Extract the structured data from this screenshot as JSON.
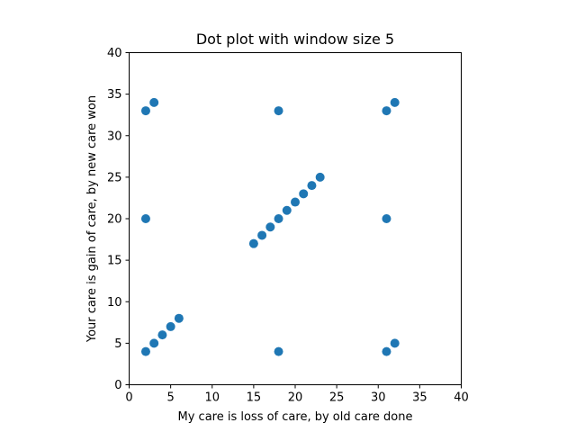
{
  "chart_data": {
    "type": "scatter",
    "title": "Dot plot with window size 5",
    "xlabel": "My care is loss of care, by old care done",
    "ylabel": "Your care is gain of care, by new care won",
    "xlim": [
      0,
      40
    ],
    "ylim": [
      0,
      40
    ],
    "xticks": [
      0,
      5,
      10,
      15,
      20,
      25,
      30,
      35,
      40
    ],
    "yticks": [
      0,
      5,
      10,
      15,
      20,
      25,
      30,
      35,
      40
    ],
    "grid": false,
    "marker_color": "#1f77b4",
    "points": [
      {
        "x": 2,
        "y": 33
      },
      {
        "x": 3,
        "y": 34
      },
      {
        "x": 18,
        "y": 33
      },
      {
        "x": 31,
        "y": 33
      },
      {
        "x": 32,
        "y": 34
      },
      {
        "x": 2,
        "y": 20
      },
      {
        "x": 15,
        "y": 17
      },
      {
        "x": 16,
        "y": 18
      },
      {
        "x": 17,
        "y": 19
      },
      {
        "x": 18,
        "y": 20
      },
      {
        "x": 19,
        "y": 21
      },
      {
        "x": 20,
        "y": 22
      },
      {
        "x": 21,
        "y": 23
      },
      {
        "x": 22,
        "y": 24
      },
      {
        "x": 23,
        "y": 25
      },
      {
        "x": 31,
        "y": 20
      },
      {
        "x": 2,
        "y": 4
      },
      {
        "x": 3,
        "y": 5
      },
      {
        "x": 4,
        "y": 6
      },
      {
        "x": 5,
        "y": 7
      },
      {
        "x": 6,
        "y": 8
      },
      {
        "x": 18,
        "y": 4
      },
      {
        "x": 31,
        "y": 4
      },
      {
        "x": 32,
        "y": 5
      }
    ]
  }
}
